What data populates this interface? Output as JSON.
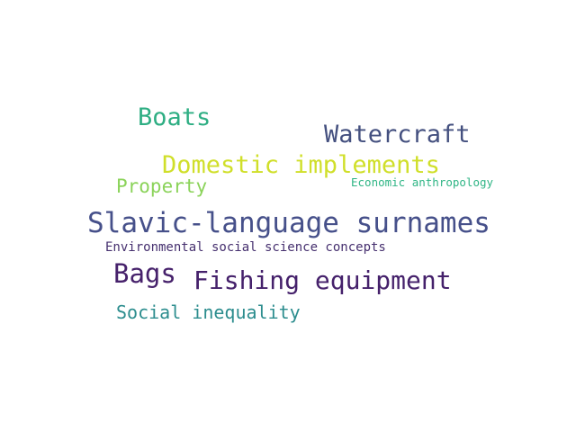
{
  "words": [
    {
      "text": "Slavic-language surnames",
      "color": "#46508a"
    },
    {
      "text": "Domestic implements",
      "color": "#d0df2a"
    },
    {
      "text": "Watercraft",
      "color": "#44507f"
    },
    {
      "text": "Fishing equipment",
      "color": "#45216b"
    },
    {
      "text": "Boats",
      "color": "#2eae83"
    },
    {
      "text": "Bags",
      "color": "#46216b"
    },
    {
      "text": "Social inequality",
      "color": "#2c8d8e"
    },
    {
      "text": "Property",
      "color": "#8bd35a"
    },
    {
      "text": "Environmental social science concepts",
      "color": "#46306f"
    },
    {
      "text": "Economic anthropology",
      "color": "#2fb585"
    }
  ]
}
